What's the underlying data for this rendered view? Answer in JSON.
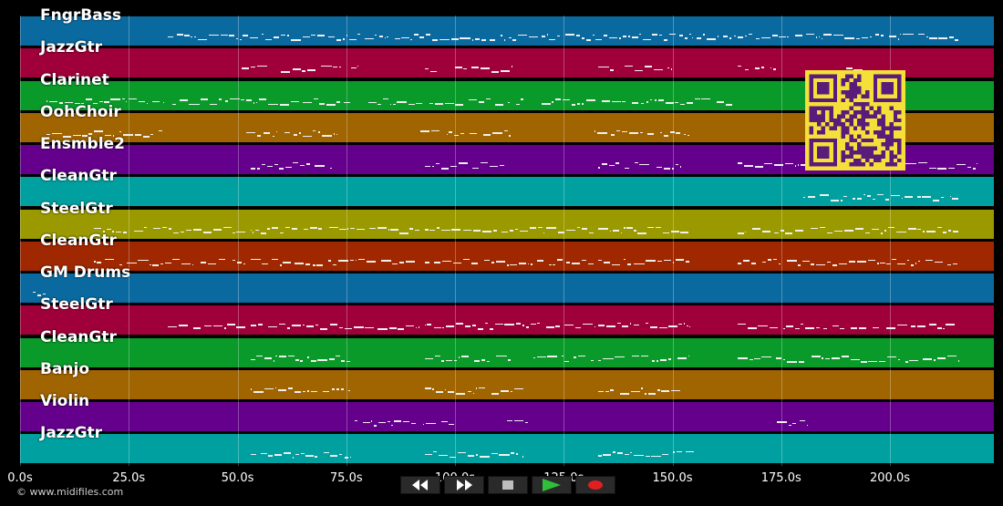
{
  "tracks": [
    {
      "name": "FngrBass",
      "color": "#0a6aa0"
    },
    {
      "name": "JazzGtr",
      "color": "#a0003a"
    },
    {
      "name": "Clarinet",
      "color": "#0a9a2a"
    },
    {
      "name": "OohChoir",
      "color": "#a06400"
    },
    {
      "name": "Ensmble2",
      "color": "#64008c"
    },
    {
      "name": "CleanGtr",
      "color": "#00a0a0"
    },
    {
      "name": "SteelGtr",
      "color": "#9a9a00"
    },
    {
      "name": "CleanGtr",
      "color": "#a02800"
    },
    {
      "name": "GM Drums",
      "color": "#0a6aa0"
    },
    {
      "name": "SteelGtr",
      "color": "#a0003a"
    },
    {
      "name": "CleanGtr",
      "color": "#0a9a2a"
    },
    {
      "name": "Banjo",
      "color": "#a06400"
    },
    {
      "name": "Violin",
      "color": "#64008c"
    },
    {
      "name": "JazzGtr",
      "color": "#00a0a0"
    }
  ],
  "timeline": {
    "unit": "s",
    "max_seconds": 220,
    "ticks": [
      {
        "value": 0,
        "label": "0.0s"
      },
      {
        "value": 25,
        "label": "25.0s"
      },
      {
        "value": 50,
        "label": "50.0s"
      },
      {
        "value": 75,
        "label": "75.0s"
      },
      {
        "value": 100,
        "label": "100.0s"
      },
      {
        "value": 125,
        "label": "125.0s"
      },
      {
        "value": 150,
        "label": "150.0s"
      },
      {
        "value": 175,
        "label": "175.0s"
      },
      {
        "value": 200,
        "label": "200.0s"
      }
    ]
  },
  "note_segments": [
    {
      "track": 0,
      "start": 34,
      "end": 216
    },
    {
      "track": 1,
      "start": 51,
      "end": 57
    },
    {
      "track": 1,
      "start": 60,
      "end": 74
    },
    {
      "track": 1,
      "start": 76,
      "end": 78
    },
    {
      "track": 1,
      "start": 93,
      "end": 96
    },
    {
      "track": 1,
      "start": 100,
      "end": 113
    },
    {
      "track": 1,
      "start": 133,
      "end": 137
    },
    {
      "track": 1,
      "start": 139,
      "end": 150
    },
    {
      "track": 1,
      "start": 165,
      "end": 174
    },
    {
      "track": 1,
      "start": 190,
      "end": 196
    },
    {
      "track": 2,
      "start": 6,
      "end": 33
    },
    {
      "track": 2,
      "start": 35,
      "end": 76
    },
    {
      "track": 2,
      "start": 80,
      "end": 116
    },
    {
      "track": 2,
      "start": 120,
      "end": 164
    },
    {
      "track": 3,
      "start": 6,
      "end": 33
    },
    {
      "track": 3,
      "start": 52,
      "end": 73
    },
    {
      "track": 3,
      "start": 92,
      "end": 113
    },
    {
      "track": 3,
      "start": 132,
      "end": 154
    },
    {
      "track": 4,
      "start": 53,
      "end": 72
    },
    {
      "track": 4,
      "start": 93,
      "end": 113
    },
    {
      "track": 4,
      "start": 133,
      "end": 152
    },
    {
      "track": 4,
      "start": 165,
      "end": 220
    },
    {
      "track": 5,
      "start": 180,
      "end": 216
    },
    {
      "track": 6,
      "start": 17,
      "end": 52
    },
    {
      "track": 6,
      "start": 53,
      "end": 92
    },
    {
      "track": 6,
      "start": 93,
      "end": 132
    },
    {
      "track": 6,
      "start": 133,
      "end": 154
    },
    {
      "track": 6,
      "start": 165,
      "end": 216
    },
    {
      "track": 7,
      "start": 17,
      "end": 52
    },
    {
      "track": 7,
      "start": 53,
      "end": 92
    },
    {
      "track": 7,
      "start": 93,
      "end": 132
    },
    {
      "track": 7,
      "start": 133,
      "end": 154
    },
    {
      "track": 7,
      "start": 165,
      "end": 216
    },
    {
      "track": 8,
      "start": 3,
      "end": 6
    },
    {
      "track": 9,
      "start": 34,
      "end": 52
    },
    {
      "track": 9,
      "start": 53,
      "end": 92
    },
    {
      "track": 9,
      "start": 93,
      "end": 132
    },
    {
      "track": 9,
      "start": 133,
      "end": 154
    },
    {
      "track": 9,
      "start": 165,
      "end": 216
    },
    {
      "track": 10,
      "start": 53,
      "end": 76
    },
    {
      "track": 10,
      "start": 93,
      "end": 113
    },
    {
      "track": 10,
      "start": 118,
      "end": 132
    },
    {
      "track": 10,
      "start": 133,
      "end": 154
    },
    {
      "track": 10,
      "start": 165,
      "end": 216
    },
    {
      "track": 11,
      "start": 53,
      "end": 76
    },
    {
      "track": 11,
      "start": 93,
      "end": 116
    },
    {
      "track": 11,
      "start": 133,
      "end": 152
    },
    {
      "track": 12,
      "start": 77,
      "end": 100
    },
    {
      "track": 12,
      "start": 112,
      "end": 117
    },
    {
      "track": 12,
      "start": 174,
      "end": 181
    },
    {
      "track": 13,
      "start": 53,
      "end": 76
    },
    {
      "track": 13,
      "start": 93,
      "end": 116
    },
    {
      "track": 13,
      "start": 133,
      "end": 156
    }
  ],
  "controls": {
    "rewind": "rewind-icon",
    "forward": "fast-forward-icon",
    "stop": "stop-icon",
    "play": "play-icon",
    "record": "record-icon"
  },
  "copyright": "© www.midifiles.com"
}
